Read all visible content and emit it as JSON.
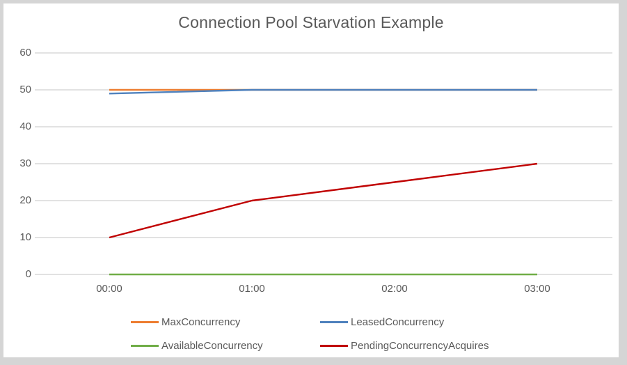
{
  "title": "Connection Pool Starvation Example",
  "colors": {
    "background_frame": "#d5d5d5",
    "canvas": "#ffffff",
    "gridline": "#d9d9d9",
    "text": "#595959"
  },
  "chart_data": {
    "type": "line",
    "title": "Connection Pool Starvation Example",
    "categories": [
      "00:00",
      "01:00",
      "02:00",
      "03:00"
    ],
    "series": [
      {
        "name": "MaxConcurrency",
        "color": "#ED7D31",
        "values": [
          50,
          50,
          50,
          50
        ]
      },
      {
        "name": "LeasedConcurrency",
        "color": "#4E81BD",
        "values": [
          49,
          50,
          50,
          50
        ]
      },
      {
        "name": "AvailableConcurrency",
        "color": "#70AD47",
        "values": [
          0,
          0,
          0,
          0
        ]
      },
      {
        "name": "PendingConcurrencyAcquires",
        "color": "#C00000",
        "values": [
          10,
          20,
          25,
          30
        ]
      }
    ],
    "xlabel": "",
    "ylabel": "",
    "ylim": [
      0,
      60
    ],
    "yticks": [
      0,
      10,
      20,
      30,
      40,
      50,
      60
    ],
    "grid": true,
    "legend_position": "bottom",
    "legend_layout": "2-columns-2-rows"
  }
}
